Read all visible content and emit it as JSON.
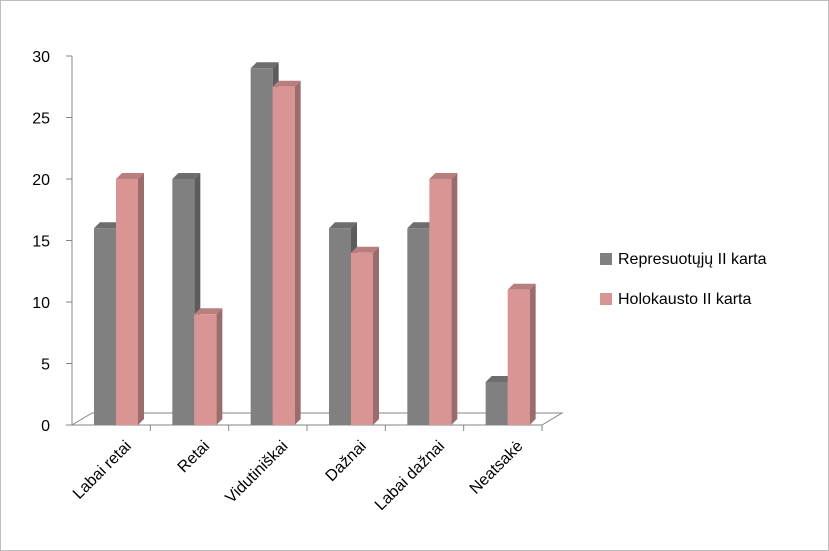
{
  "chart_data": {
    "type": "bar",
    "title": "",
    "xlabel": "",
    "ylabel": "",
    "categories": [
      "Labai retai",
      "Retai",
      "Vidutiniškai",
      "Dažnai",
      "Labai dažnai",
      "Neatsakė"
    ],
    "series": [
      {
        "name": "Represuotųjų II karta",
        "color": "#808080",
        "values": [
          16,
          20,
          29,
          16,
          16,
          3.5
        ]
      },
      {
        "name": "Holokausto II karta",
        "color": "#d99594",
        "values": [
          20,
          9,
          27.5,
          14,
          20,
          11
        ]
      }
    ],
    "ylim": [
      0,
      30
    ],
    "yticks": [
      "0",
      "5",
      "10",
      "15",
      "20",
      "25",
      "30"
    ],
    "legend_position": "right",
    "grid": false,
    "style": "3d-clustered-column"
  }
}
